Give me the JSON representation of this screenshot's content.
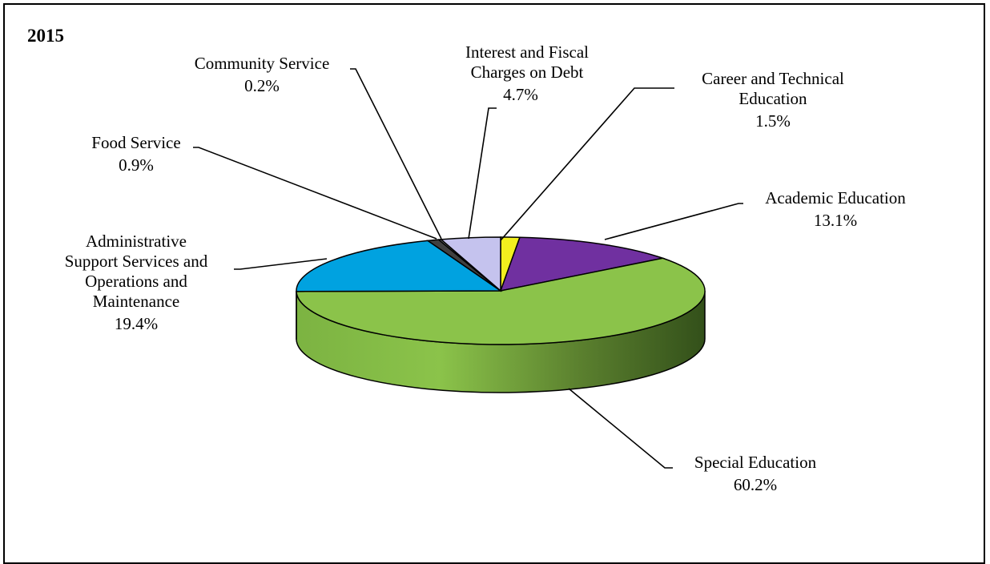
{
  "chart_data": {
    "type": "pie",
    "title": "2015",
    "style": "3d",
    "slices": [
      {
        "key": "career",
        "label": [
          "Career and Technical",
          "Education"
        ],
        "value_label": "1.5%",
        "value": 1.5,
        "color": "#f2ef1e"
      },
      {
        "key": "academic",
        "label": [
          "Academic Education"
        ],
        "value_label": "13.1%",
        "value": 13.1,
        "color": "#7030a0"
      },
      {
        "key": "special",
        "label": [
          "Special Education"
        ],
        "value_label": "60.2%",
        "value": 60.2,
        "color": "#8bc34a"
      },
      {
        "key": "admin",
        "label": [
          "Administrative",
          "Support Services and",
          "Operations and",
          "Maintenance"
        ],
        "value_label": "19.4%",
        "value": 19.4,
        "color": "#00a2e0"
      },
      {
        "key": "food",
        "label": [
          "Food Service"
        ],
        "value_label": "0.9%",
        "value": 0.9,
        "color": "#404040"
      },
      {
        "key": "community",
        "label": [
          "Community Service"
        ],
        "value_label": "0.2%",
        "value": 0.2,
        "color": "#8a8a8a"
      },
      {
        "key": "interest",
        "label": [
          "Interest and Fiscal",
          "Charges on Debt"
        ],
        "value_label": "4.7%",
        "value": 4.7,
        "color": "#c5c3ee"
      }
    ]
  }
}
